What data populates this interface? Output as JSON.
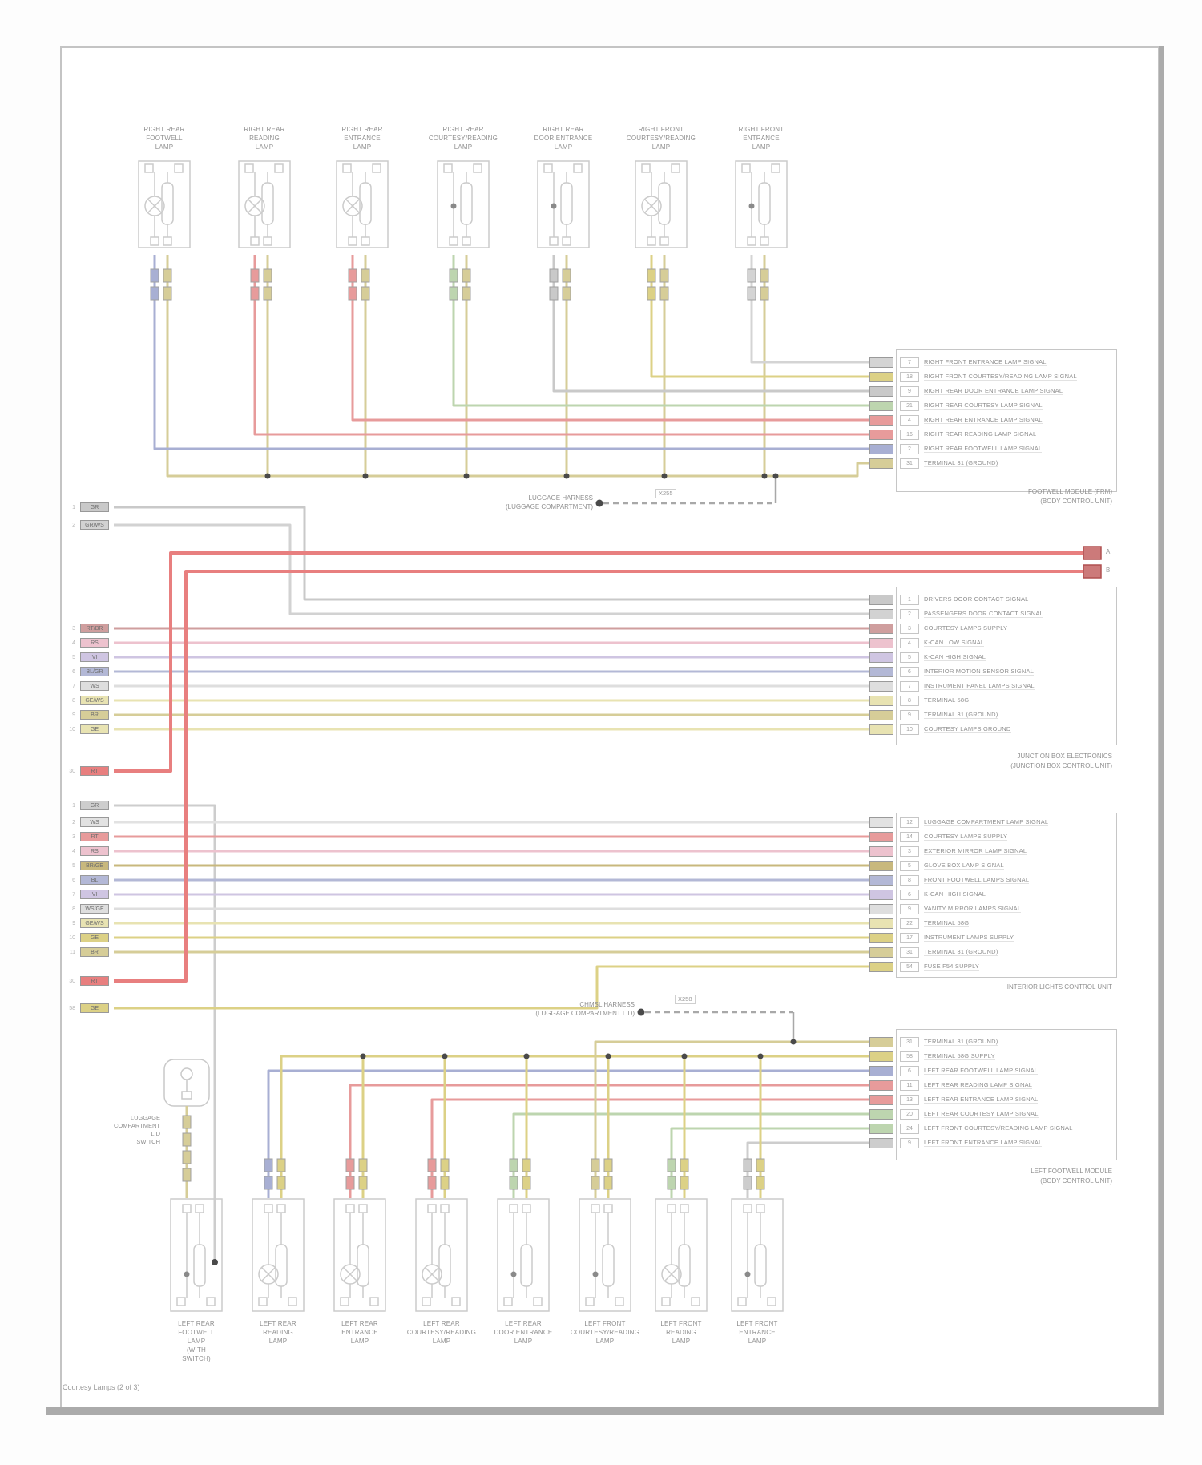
{
  "page": {
    "footer": "Courtesy Lamps (2 of 3)",
    "edge_letters": [
      "A",
      "B"
    ]
  },
  "top_lamps": [
    {
      "lines": [
        "RIGHT REAR",
        "FOOTWELL",
        "LAMP"
      ]
    },
    {
      "lines": [
        "RIGHT REAR",
        "READING",
        "LAMP"
      ]
    },
    {
      "lines": [
        "RIGHT REAR",
        "ENTRANCE",
        "LAMP"
      ]
    },
    {
      "lines": [
        "RIGHT REAR",
        "COURTESY/READING",
        "LAMP"
      ]
    },
    {
      "lines": [
        "RIGHT REAR",
        "DOOR ENTRANCE",
        "LAMP"
      ]
    },
    {
      "lines": [
        "RIGHT FRONT",
        "COURTESY/READING",
        "LAMP"
      ]
    },
    {
      "lines": [
        "RIGHT FRONT",
        "ENTRANCE",
        "LAMP"
      ]
    }
  ],
  "bottom_lamps": [
    {
      "lines": [
        "LEFT REAR",
        "FOOTWELL",
        "LAMP",
        "(WITH",
        "SWITCH)"
      ]
    },
    {
      "lines": [
        "LEFT REAR",
        "READING",
        "LAMP"
      ]
    },
    {
      "lines": [
        "LEFT REAR",
        "ENTRANCE",
        "LAMP"
      ]
    },
    {
      "lines": [
        "LEFT REAR",
        "COURTESY/READING",
        "LAMP"
      ]
    },
    {
      "lines": [
        "LEFT REAR",
        "DOOR ENTRANCE",
        "LAMP"
      ]
    },
    {
      "lines": [
        "LEFT FRONT",
        "COURTESY/READING",
        "LAMP"
      ]
    },
    {
      "lines": [
        "LEFT FRONT",
        "READING",
        "LAMP"
      ]
    },
    {
      "lines": [
        "LEFT FRONT",
        "ENTRANCE",
        "LAMP"
      ]
    }
  ],
  "switch_component": {
    "lines": [
      "LUGGAGE",
      "COMPARTMENT",
      "LID",
      "SWITCH"
    ]
  },
  "harness_top": {
    "lines": [
      "LUGGAGE HARNESS",
      "(LUGGAGE COMPARTMENT)"
    ],
    "connector": "X255"
  },
  "harness_bottom": {
    "lines": [
      "CHMSL HARNESS",
      "(LUGGAGE COMPARTMENT LID)"
    ],
    "connector": "X258"
  },
  "stubs": {
    "top": [
      {
        "pin": "1",
        "code": "GR",
        "color": "#c9c9c9"
      },
      {
        "pin": "2",
        "code": "GR/WS",
        "color": "#d2d2d2"
      }
    ],
    "band_a": [
      {
        "pin": "3",
        "code": "RT/BR",
        "color": "#cf9e9e"
      },
      {
        "pin": "4",
        "code": "RS",
        "color": "#edc2ce"
      },
      {
        "pin": "5",
        "code": "VI",
        "color": "#cfc5e2"
      },
      {
        "pin": "6",
        "code": "BL/GR",
        "color": "#b3b8d6"
      },
      {
        "pin": "7",
        "code": "WS",
        "color": "#dedede"
      },
      {
        "pin": "8",
        "code": "GE/WS",
        "color": "#e8e3b2"
      },
      {
        "pin": "9",
        "code": "BR",
        "color": "#d6cd98"
      },
      {
        "pin": "10",
        "code": "GE",
        "color": "#e8e3b2"
      }
    ],
    "band_b_first": {
      "pin": "1",
      "code": "GR",
      "color": "#cdcdcd"
    },
    "band_b": [
      {
        "pin": "2",
        "code": "WS",
        "color": "#e2e2e2"
      },
      {
        "pin": "3",
        "code": "RT",
        "color": "#e79b9b"
      },
      {
        "pin": "4",
        "code": "RS",
        "color": "#edc2ce"
      },
      {
        "pin": "5",
        "code": "BR/GE",
        "color": "#c8b87d"
      },
      {
        "pin": "6",
        "code": "BL",
        "color": "#b3b8d6"
      },
      {
        "pin": "7",
        "code": "VI",
        "color": "#cfc5e2"
      },
      {
        "pin": "8",
        "code": "WS/GE",
        "color": "#dedede"
      },
      {
        "pin": "9",
        "code": "GE/WS",
        "color": "#e8e3b2"
      },
      {
        "pin": "10",
        "code": "GE",
        "color": "#dcd186"
      },
      {
        "pin": "11",
        "code": "BR",
        "color": "#d6cd98"
      }
    ],
    "red_main": {
      "pin": "30",
      "code": "RT",
      "color": "#e87f7f"
    },
    "band_b_red": {
      "pin": "30",
      "code": "RT",
      "color": "#e87f7f"
    },
    "band_b_yellow": {
      "pin": "58",
      "code": "GE",
      "color": "#dcd186"
    }
  },
  "boxes": {
    "top_right": {
      "rows": [
        {
          "pin": "7",
          "label": "RIGHT FRONT ENTRANCE LAMP SIGNAL",
          "color": "#d4d4d4"
        },
        {
          "pin": "18",
          "label": "RIGHT FRONT COURTESY/READING LAMP SIGNAL",
          "color": "#dcd186"
        },
        {
          "pin": "9",
          "label": "RIGHT REAR DOOR ENTRANCE LAMP SIGNAL",
          "color": "#c9c9c9"
        },
        {
          "pin": "21",
          "label": "RIGHT REAR COURTESY LAMP SIGNAL",
          "color": "#bdd5af"
        },
        {
          "pin": "4",
          "label": "RIGHT REAR ENTRANCE LAMP SIGNAL",
          "color": "#e79b9b"
        },
        {
          "pin": "16",
          "label": "RIGHT REAR READING LAMP SIGNAL",
          "color": "#e79b9b"
        },
        {
          "pin": "2",
          "label": "RIGHT REAR FOOTWELL LAMP SIGNAL",
          "color": "#a8afd3"
        },
        {
          "pin": "31",
          "label": "TERMINAL 31 (GROUND)",
          "color": "#d6cd98"
        }
      ],
      "caption": [
        "FOOTWELL MODULE (FRM)",
        "(BODY CONTROL UNIT)"
      ]
    },
    "mid_a": {
      "rows": [
        {
          "pin": "1",
          "label": "DRIVERS DOOR CONTACT SIGNAL",
          "color": "#c9c9c9"
        },
        {
          "pin": "2",
          "label": "PASSENGERS DOOR CONTACT SIGNAL",
          "color": "#d2d2d2"
        },
        {
          "pin": "3",
          "label": "COURTESY LAMPS SUPPLY",
          "color": "#cf9e9e"
        },
        {
          "pin": "4",
          "label": "K-CAN LOW SIGNAL",
          "color": "#edc2ce"
        },
        {
          "pin": "5",
          "label": "K-CAN HIGH SIGNAL",
          "color": "#cfc5e2"
        },
        {
          "pin": "6",
          "label": "INTERIOR MOTION SENSOR SIGNAL",
          "color": "#b3b8d6"
        },
        {
          "pin": "7",
          "label": "INSTRUMENT PANEL LAMPS SIGNAL",
          "color": "#dedede"
        },
        {
          "pin": "8",
          "label": "TERMINAL 58G",
          "color": "#e8e3b2"
        },
        {
          "pin": "9",
          "label": "TERMINAL 31 (GROUND)",
          "color": "#d6cd98"
        },
        {
          "pin": "10",
          "label": "COURTESY LAMPS GROUND",
          "color": "#e8e3b2"
        }
      ],
      "caption": [
        "JUNCTION BOX ELECTRONICS",
        "(JUNCTION BOX CONTROL UNIT)"
      ]
    },
    "mid_b": {
      "rows": [
        {
          "pin": "12",
          "label": "LUGGAGE COMPARTMENT LAMP SIGNAL",
          "color": "#e2e2e2"
        },
        {
          "pin": "14",
          "label": "COURTESY LAMPS SUPPLY",
          "color": "#e79b9b"
        },
        {
          "pin": "3",
          "label": "EXTERIOR MIRROR LAMP SIGNAL",
          "color": "#edc2ce"
        },
        {
          "pin": "5",
          "label": "GLOVE BOX LAMP SIGNAL",
          "color": "#c8b87d"
        },
        {
          "pin": "8",
          "label": "FRONT FOOTWELL LAMPS SIGNAL",
          "color": "#b3b8d6"
        },
        {
          "pin": "6",
          "label": "K-CAN HIGH SIGNAL",
          "color": "#cfc5e2"
        },
        {
          "pin": "9",
          "label": "VANITY MIRROR LAMPS SIGNAL",
          "color": "#dedede"
        },
        {
          "pin": "22",
          "label": "TERMINAL 58G",
          "color": "#e8e3b2"
        },
        {
          "pin": "17",
          "label": "INSTRUMENT LAMPS SUPPLY",
          "color": "#dcd186"
        },
        {
          "pin": "31",
          "label": "TERMINAL 31 (GROUND)",
          "color": "#d6cd98"
        },
        {
          "pin": "54",
          "label": "FUSE F54 SUPPLY",
          "color": "#dcd186"
        }
      ],
      "caption": [
        "INTERIOR LIGHTS CONTROL UNIT"
      ]
    },
    "bottom": {
      "rows": [
        {
          "pin": "31",
          "label": "TERMINAL 31 (GROUND)",
          "color": "#d6cd98"
        },
        {
          "pin": "58",
          "label": "TERMINAL 58G SUPPLY",
          "color": "#dcd186"
        },
        {
          "pin": "6",
          "label": "LEFT REAR FOOTWELL LAMP SIGNAL",
          "color": "#a8afd3"
        },
        {
          "pin": "11",
          "label": "LEFT REAR READING LAMP SIGNAL",
          "color": "#e79b9b"
        },
        {
          "pin": "13",
          "label": "LEFT REAR ENTRANCE LAMP SIGNAL",
          "color": "#e79b9b"
        },
        {
          "pin": "20",
          "label": "LEFT REAR COURTESY LAMP SIGNAL",
          "color": "#bdd5af"
        },
        {
          "pin": "24",
          "label": "LEFT FRONT COURTESY/READING LAMP SIGNAL",
          "color": "#bdd5af"
        },
        {
          "pin": "9",
          "label": "LEFT FRONT ENTRANCE LAMP SIGNAL",
          "color": "#cdcdcd"
        }
      ],
      "caption": [
        "LEFT FOOTWELL MODULE",
        "(BODY CONTROL UNIT)"
      ]
    }
  }
}
